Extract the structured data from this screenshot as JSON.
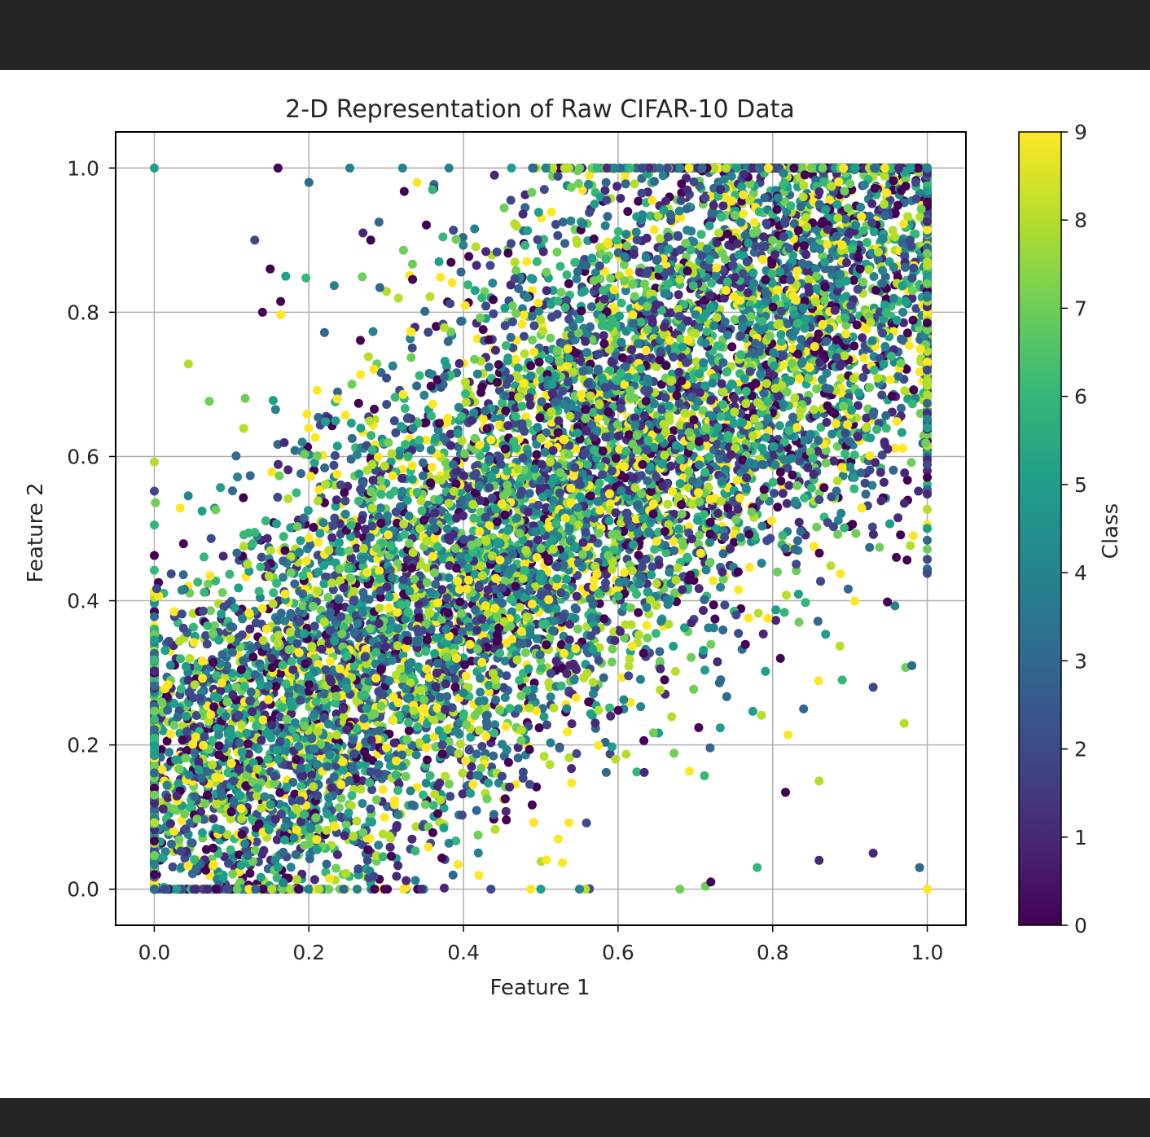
{
  "chart_data": {
    "type": "scatter",
    "title": "2-D Representation of Raw CIFAR-10 Data",
    "xlabel": "Feature 1",
    "ylabel": "Feature 2",
    "xlim": [
      -0.05,
      1.05
    ],
    "ylim": [
      -0.05,
      1.05
    ],
    "x_ticks": [
      "0.0",
      "0.2",
      "0.4",
      "0.6",
      "0.8",
      "1.0"
    ],
    "y_ticks": [
      "0.0",
      "0.2",
      "0.4",
      "0.6",
      "0.8",
      "1.0"
    ],
    "grid": true,
    "colormap": "viridis",
    "colorbar": {
      "label": "Class",
      "range": [
        0,
        9
      ],
      "ticks": [
        "0",
        "1",
        "2",
        "3",
        "4",
        "5",
        "6",
        "7",
        "8",
        "9"
      ]
    },
    "classes": [
      0,
      1,
      2,
      3,
      4,
      5,
      6,
      7,
      8,
      9
    ],
    "viridis_colors": [
      "#440154",
      "#482878",
      "#3e4989",
      "#31688e",
      "#26828e",
      "#1f9e89",
      "#35b779",
      "#6ece58",
      "#b5de2b",
      "#fde725"
    ],
    "point_count_estimate": 10000,
    "distribution_note_points": [
      {
        "x": 0.0,
        "y": 1.0,
        "class": 5
      },
      {
        "x": 0.16,
        "y": 1.0,
        "class": 0
      },
      {
        "x": 0.2,
        "y": 0.98,
        "class": 3
      },
      {
        "x": 0.13,
        "y": 0.9,
        "class": 2
      },
      {
        "x": 0.27,
        "y": 0.91,
        "class": 1
      },
      {
        "x": 0.28,
        "y": 0.9,
        "class": 0
      },
      {
        "x": 0.44,
        "y": 0.99,
        "class": 1
      },
      {
        "x": 0.55,
        "y": 1.0,
        "class": 7
      },
      {
        "x": 0.34,
        "y": 0.98,
        "class": 9
      },
      {
        "x": 0.36,
        "y": 0.97,
        "class": 6
      },
      {
        "x": 0.17,
        "y": 0.85,
        "class": 5
      },
      {
        "x": 0.15,
        "y": 0.86,
        "class": 0
      },
      {
        "x": 0.14,
        "y": 0.8,
        "class": 0
      },
      {
        "x": 0.81,
        "y": 0.32,
        "class": 0
      },
      {
        "x": 0.84,
        "y": 0.25,
        "class": 3
      },
      {
        "x": 0.97,
        "y": 0.23,
        "class": 8
      },
      {
        "x": 0.93,
        "y": 0.28,
        "class": 2
      },
      {
        "x": 0.89,
        "y": 0.29,
        "class": 6
      },
      {
        "x": 0.86,
        "y": 0.15,
        "class": 8
      },
      {
        "x": 0.86,
        "y": 0.04,
        "class": 1
      },
      {
        "x": 0.93,
        "y": 0.05,
        "class": 1
      },
      {
        "x": 0.99,
        "y": 0.03,
        "class": 3
      },
      {
        "x": 1.0,
        "y": 0.0,
        "class": 9
      },
      {
        "x": 0.72,
        "y": 0.01,
        "class": 0
      },
      {
        "x": 0.68,
        "y": 0.0,
        "class": 7
      },
      {
        "x": 0.55,
        "y": 0.0,
        "class": 4
      },
      {
        "x": 0.5,
        "y": 0.0,
        "class": 5
      },
      {
        "x": 0.78,
        "y": 0.03,
        "class": 6
      },
      {
        "x": 0.98,
        "y": 0.31,
        "class": 3
      },
      {
        "x": 0.96,
        "y": 0.46,
        "class": 0
      }
    ]
  }
}
